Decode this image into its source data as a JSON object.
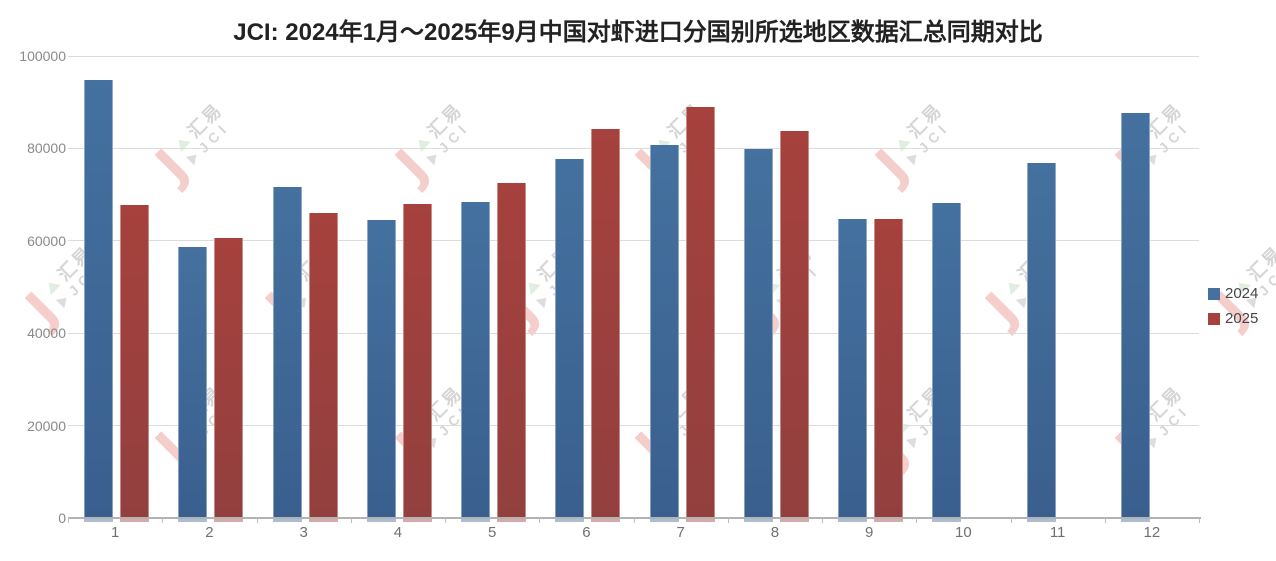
{
  "page": {
    "background": "#ffffff"
  },
  "chart_data": {
    "type": "bar",
    "title": "JCI: 2024年1月～2025年9月中国对虾进口分国别所选地区数据汇总同期对比",
    "categories": [
      "1",
      "2",
      "3",
      "4",
      "5",
      "6",
      "7",
      "8",
      "9",
      "10",
      "11",
      "12"
    ],
    "series": [
      {
        "name": "2024",
        "color": "#44719f",
        "color_dark": "#3a5f8e",
        "values": [
          94800,
          58700,
          71700,
          64500,
          68400,
          77700,
          80700,
          79900,
          64800,
          68200,
          76900,
          87700
        ]
      },
      {
        "name": "2025",
        "color": "#a6413d",
        "color_dark": "#92403e",
        "values": [
          67800,
          60600,
          66000,
          68000,
          72500,
          84200,
          89000,
          83800,
          64800,
          null,
          null,
          null
        ]
      }
    ],
    "xlabel": "",
    "ylabel": "",
    "ylim": [
      0,
      100000
    ],
    "yticks": [
      0,
      20000,
      40000,
      60000,
      80000,
      100000
    ],
    "grid": true,
    "legend_position": "right"
  },
  "watermark": {
    "line1": "汇易",
    "line2": "JCI",
    "logo_glyph": "J"
  }
}
